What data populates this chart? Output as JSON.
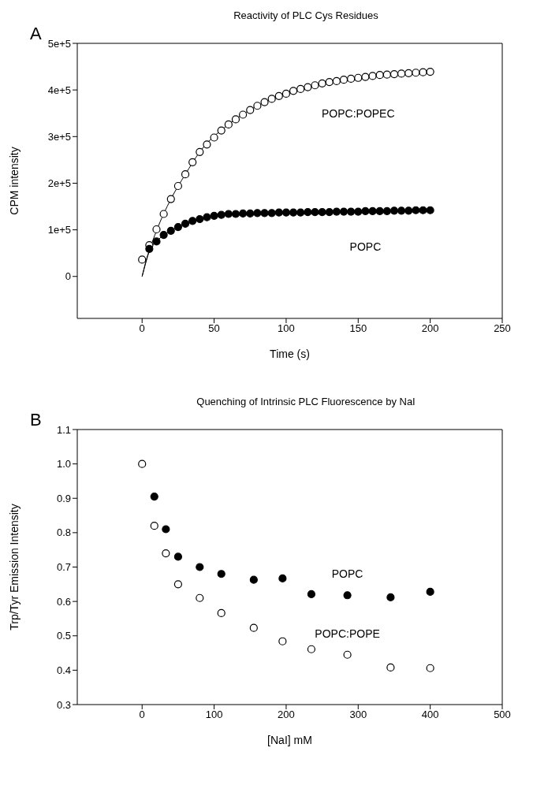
{
  "chart_data": [
    {
      "type": "scatter",
      "title": "Reactivity of PLC Cys Residues",
      "xlabel": "Time (s)",
      "ylabel": "CPM intensity",
      "annotations": [
        "A"
      ],
      "legend": false,
      "grid": false,
      "marker": "circle",
      "xlim": [
        -45,
        250
      ],
      "xticks": [
        0,
        50,
        100,
        150,
        200,
        250
      ],
      "ylim": [
        -90000,
        500000
      ],
      "yticks": [
        {
          "value": 0,
          "label": "0"
        },
        {
          "value": 100000,
          "label": "1e+5"
        },
        {
          "value": 200000,
          "label": "2e+5"
        },
        {
          "value": 300000,
          "label": "3e+5"
        },
        {
          "value": 400000,
          "label": "4e+5"
        },
        {
          "value": 500000,
          "label": "5e+5"
        }
      ],
      "series": [
        {
          "type": "line",
          "marker": "none",
          "color": "#000000",
          "x": [
            0,
            5,
            10,
            20,
            30,
            40,
            60,
            80,
            100,
            130,
            160,
            200
          ],
          "values": [
            0,
            55000,
            98000,
            166000,
            219000,
            267000,
            326000,
            366000,
            392000,
            417000,
            430000,
            439000
          ]
        },
        {
          "type": "line",
          "marker": "none",
          "color": "#000000",
          "x": [
            0,
            5,
            10,
            20,
            30,
            40,
            60,
            100,
            150,
            200
          ],
          "values": [
            0,
            55000,
            75000,
            98000,
            113000,
            123000,
            134000,
            137000,
            140000,
            142000
          ]
        },
        {
          "name": "POPC:POPEC",
          "color": "#000000",
          "x": [
            0,
            5,
            10,
            15,
            20,
            25,
            30,
            35,
            40,
            45,
            50,
            55,
            60,
            65,
            70,
            75,
            80,
            85,
            90,
            95,
            100,
            105,
            110,
            115,
            120,
            125,
            130,
            135,
            140,
            145,
            150,
            155,
            160,
            165,
            170,
            175,
            180,
            185,
            190,
            195,
            200
          ],
          "values": [
            36000,
            67000,
            101000,
            134000,
            166000,
            194000,
            219000,
            245000,
            267000,
            283000,
            298000,
            313000,
            326000,
            337000,
            347000,
            357000,
            366000,
            374000,
            381000,
            387000,
            392000,
            398000,
            402000,
            406000,
            410000,
            414000,
            417000,
            419000,
            422000,
            424000,
            426000,
            428000,
            430000,
            432000,
            433000,
            434000,
            435000,
            436000,
            437000,
            438000,
            439000
          ]
        },
        {
          "name": "POPC",
          "color": "#000000",
          "x": [
            5,
            10,
            15,
            20,
            25,
            30,
            35,
            40,
            45,
            50,
            55,
            60,
            65,
            70,
            75,
            80,
            85,
            90,
            95,
            100,
            105,
            110,
            115,
            120,
            125,
            130,
            135,
            140,
            145,
            150,
            155,
            160,
            165,
            170,
            175,
            180,
            185,
            190,
            195,
            200
          ],
          "values": [
            59000,
            75000,
            89000,
            98000,
            106000,
            113000,
            119000,
            123000,
            127000,
            130000,
            132000,
            134000,
            134000,
            135000,
            135000,
            136000,
            136000,
            136000,
            137000,
            137000,
            137000,
            137000,
            138000,
            138000,
            138000,
            138000,
            139000,
            139000,
            139000,
            139000,
            140000,
            140000,
            140000,
            140000,
            141000,
            141000,
            141000,
            142000,
            142000,
            142000
          ]
        }
      ]
    },
    {
      "type": "scatter",
      "title": "Quenching of Intrinsic PLC Fluorescence by NaI",
      "xlabel": "[NaI] mM",
      "ylabel": "Trp/Tyr Emission Intensity",
      "annotations": [
        "B"
      ],
      "legend": false,
      "grid": false,
      "marker": "circle",
      "xlim": [
        -90,
        500
      ],
      "xticks": [
        0,
        100,
        200,
        300,
        400,
        500
      ],
      "ylim": [
        0.3,
        1.1
      ],
      "yticks": [
        {
          "value": 0.3,
          "label": "0.3"
        },
        {
          "value": 0.4,
          "label": "0.4"
        },
        {
          "value": 0.5,
          "label": "0.5"
        },
        {
          "value": 0.6,
          "label": "0.6"
        },
        {
          "value": 0.7,
          "label": "0.7"
        },
        {
          "value": 0.8,
          "label": "0.8"
        },
        {
          "value": 0.9,
          "label": "0.9"
        },
        {
          "value": 1.0,
          "label": "1.0"
        },
        {
          "value": 1.1,
          "label": "1.1"
        }
      ],
      "series": [
        {
          "name": "POPC:POPE",
          "color": "#000000",
          "x": [
            0,
            17,
            33,
            50,
            80,
            110,
            155,
            195,
            235,
            285,
            345,
            400
          ],
          "values": [
            1.0,
            0.82,
            0.74,
            0.65,
            0.61,
            0.566,
            0.523,
            0.484,
            0.461,
            0.445,
            0.408,
            0.406
          ]
        },
        {
          "name": "POPC",
          "color": "#000000",
          "x": [
            17,
            33,
            50,
            80,
            110,
            155,
            195,
            235,
            285,
            345,
            400
          ],
          "values": [
            0.905,
            0.81,
            0.73,
            0.7,
            0.68,
            0.663,
            0.667,
            0.621,
            0.618,
            0.612,
            0.628
          ]
        }
      ]
    }
  ]
}
